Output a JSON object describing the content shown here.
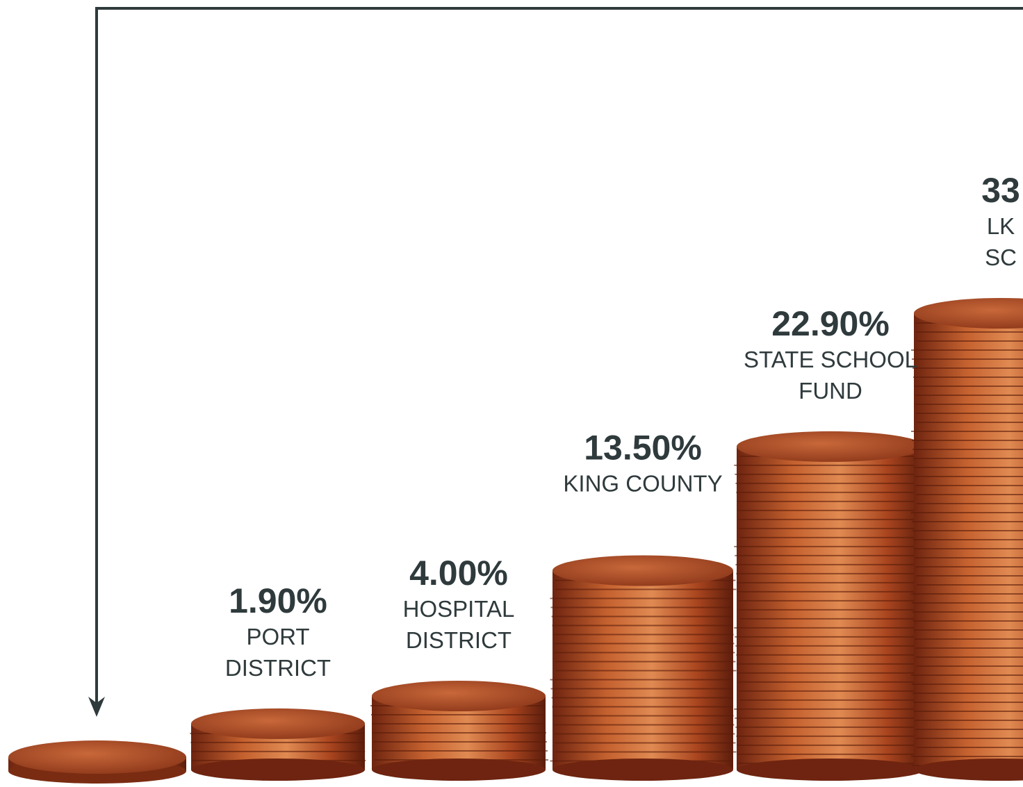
{
  "chart_data": {
    "type": "bar",
    "categories": [
      [
        "PORT",
        "DISTRICT"
      ],
      [
        "HOSPITAL",
        "DISTRICT"
      ],
      [
        "KING COUNTY"
      ],
      [
        "STATE SCHOOL",
        "FUND"
      ],
      [
        "LK",
        "SC"
      ]
    ],
    "values": [
      1.9,
      4.0,
      13.5,
      22.9,
      33
    ],
    "value_labels": [
      "1.90%",
      "4.00%",
      "13.50%",
      "22.90%",
      "33"
    ],
    "color": "#b5532a"
  }
}
